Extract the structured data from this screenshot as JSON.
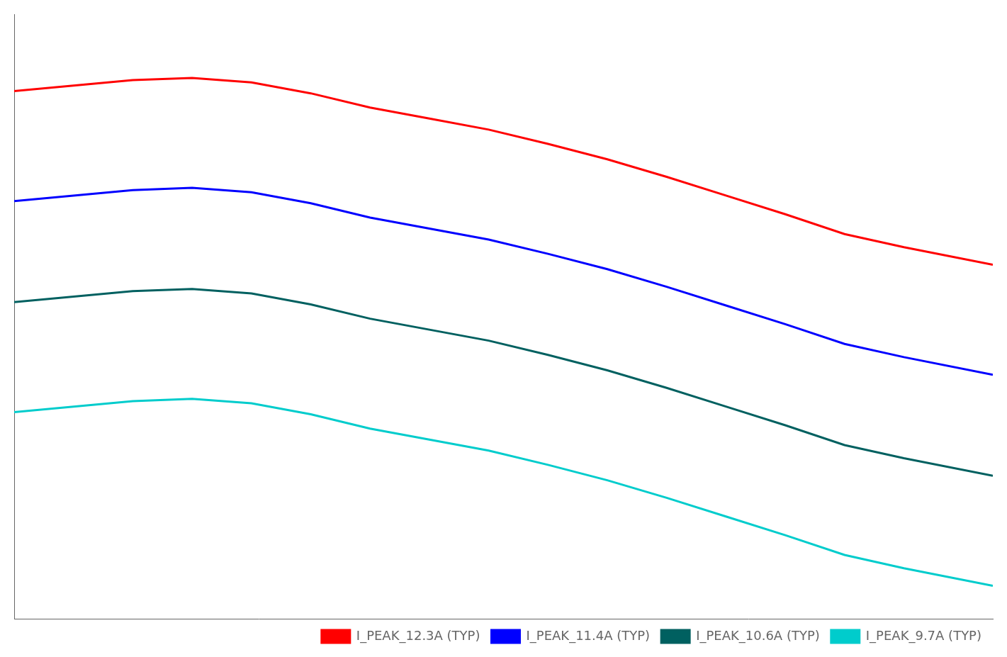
{
  "chart_data": {
    "type": "line",
    "x": [
      -40,
      -20,
      -10,
      0,
      10,
      20,
      30,
      40,
      50,
      60,
      70,
      80,
      90,
      100,
      110,
      125
    ],
    "series": [
      {
        "name": "I_PEAK_12.3A (TYP)",
        "color": "#ff0000",
        "values": [
          13.3,
          13.4,
          13.42,
          13.38,
          13.28,
          13.15,
          13.05,
          12.95,
          12.82,
          12.68,
          12.52,
          12.35,
          12.18,
          12.0,
          11.88,
          11.72
        ]
      },
      {
        "name": "I_PEAK_11.4A (TYP)",
        "color": "#0000ff",
        "values": [
          12.3,
          12.4,
          12.42,
          12.38,
          12.28,
          12.15,
          12.05,
          11.95,
          11.82,
          11.68,
          11.52,
          11.35,
          11.18,
          11.0,
          10.88,
          10.72
        ]
      },
      {
        "name": "I_PEAK_10.6A (TYP)",
        "color": "#006060",
        "values": [
          11.38,
          11.48,
          11.5,
          11.46,
          11.36,
          11.23,
          11.13,
          11.03,
          10.9,
          10.76,
          10.6,
          10.43,
          10.26,
          10.08,
          9.96,
          9.8
        ]
      },
      {
        "name": "I_PEAK_9.7A (TYP)",
        "color": "#00cccc",
        "values": [
          10.38,
          10.48,
          10.5,
          10.46,
          10.36,
          10.23,
          10.13,
          10.03,
          9.9,
          9.76,
          9.6,
          9.43,
          9.26,
          9.08,
          8.96,
          8.8
        ]
      }
    ],
    "xlim": [
      -40,
      125
    ],
    "ylim": [
      8.5,
      14.0
    ],
    "grid": false,
    "legend": "lower right",
    "tick_labels": false
  }
}
